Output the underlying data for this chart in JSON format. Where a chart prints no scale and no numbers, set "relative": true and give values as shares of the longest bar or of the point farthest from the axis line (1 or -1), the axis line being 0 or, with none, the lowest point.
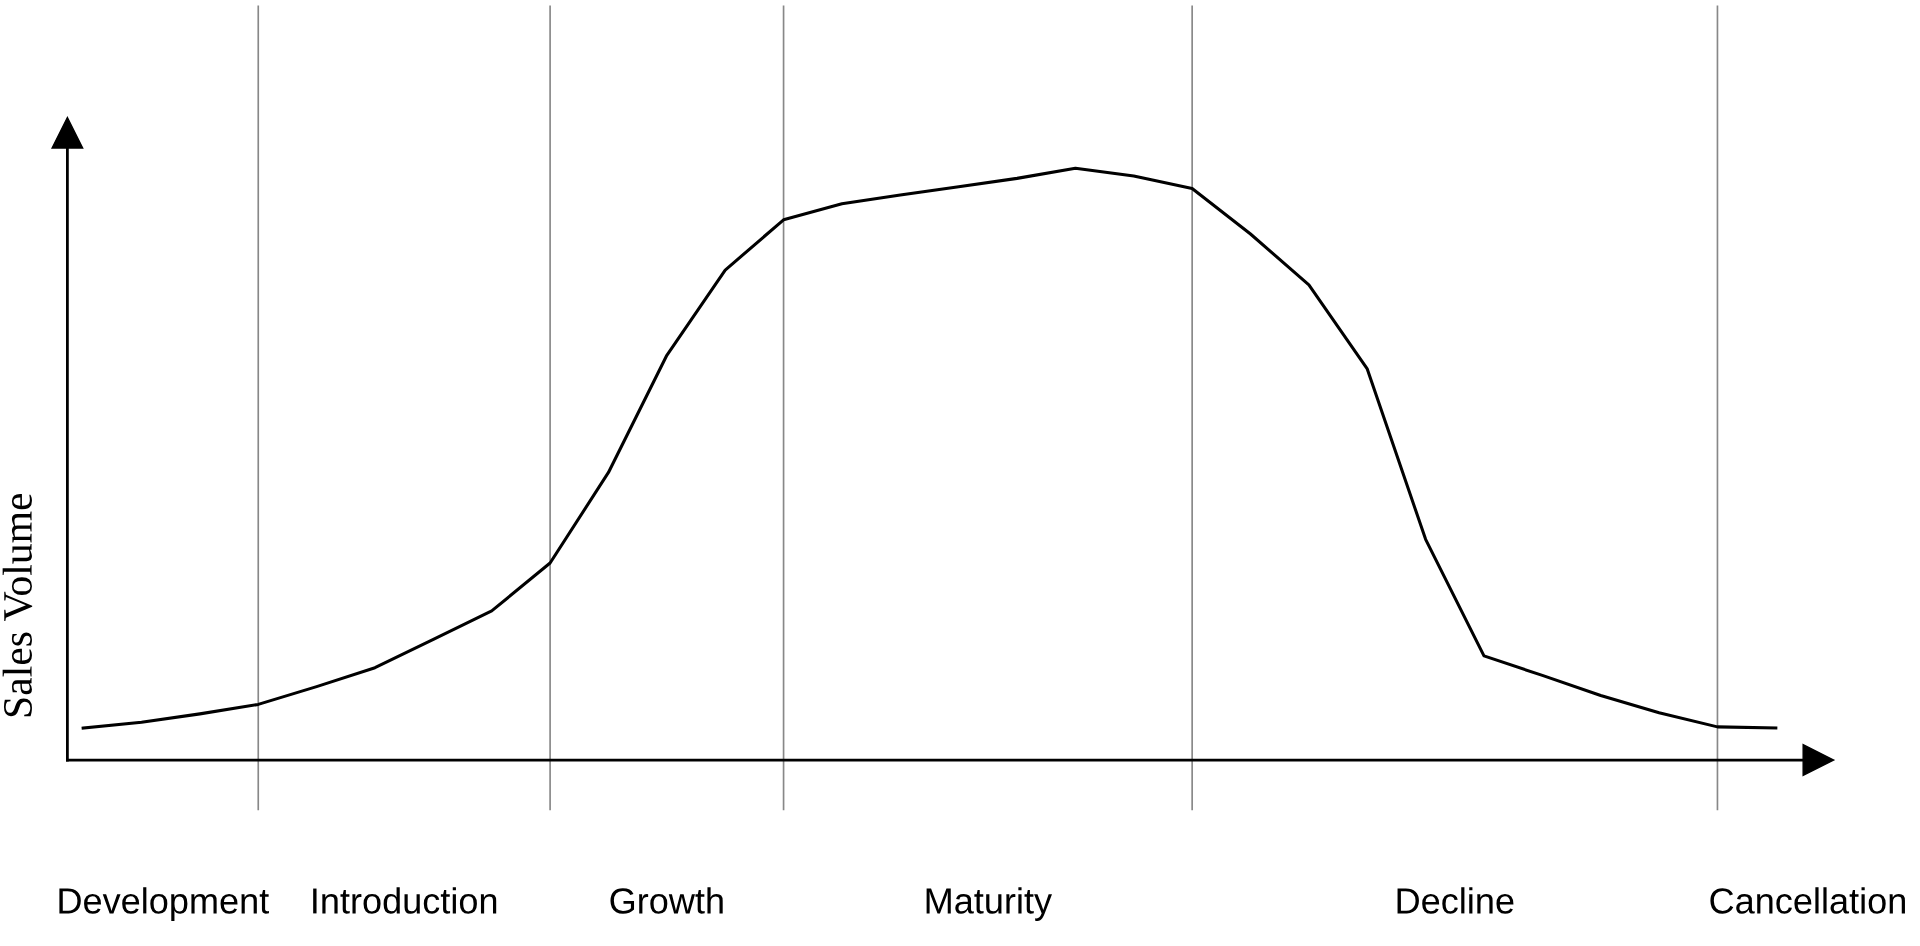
{
  "chart_data": {
    "type": "line",
    "relative": true,
    "ylabel": "Sales Volume",
    "categories": [
      null,
      null,
      null,
      null,
      null,
      null,
      null,
      null,
      null,
      null,
      null,
      null,
      null,
      null,
      null,
      null,
      null,
      null,
      null,
      null,
      null,
      null,
      null,
      null,
      null,
      null,
      null,
      null,
      null,
      null
    ],
    "series": [
      {
        "color": "#000000",
        "values": [
          0.054,
          0.064,
          0.078,
          0.094,
          0.124,
          0.156,
          0.204,
          0.252,
          0.333,
          0.486,
          0.684,
          0.828,
          0.913,
          0.94,
          0.955,
          0.969,
          0.983,
          1.0,
          0.987,
          0.966,
          0.889,
          0.803,
          0.661,
          0.373,
          0.176,
          0.143,
          0.109,
          0.08,
          0.056,
          0.054
        ]
      }
    ],
    "grid": "x",
    "annotations": [
      "Development",
      "Introduction",
      "Growth",
      "Maturity",
      "Decline",
      "Cancellation"
    ],
    "legend": false,
    "marker": "none",
    "line_style": "solid"
  }
}
